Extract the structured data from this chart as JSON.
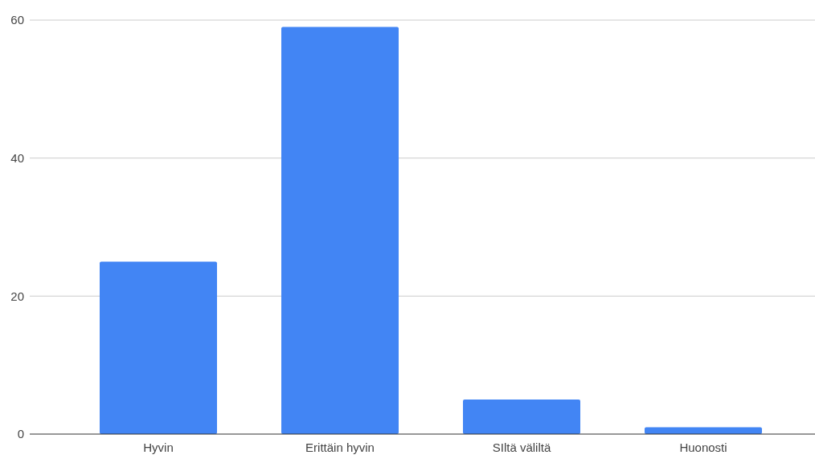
{
  "chart_data": {
    "type": "bar",
    "categories": [
      "Hyvin",
      "Erittäin hyvin",
      "SIltä väliltä",
      "Huonosti"
    ],
    "values": [
      25,
      59,
      5,
      1
    ],
    "color": "#4285f4",
    "ylim": [
      0,
      60
    ],
    "yticks": [
      0,
      20,
      40,
      60
    ],
    "grid": "y"
  }
}
